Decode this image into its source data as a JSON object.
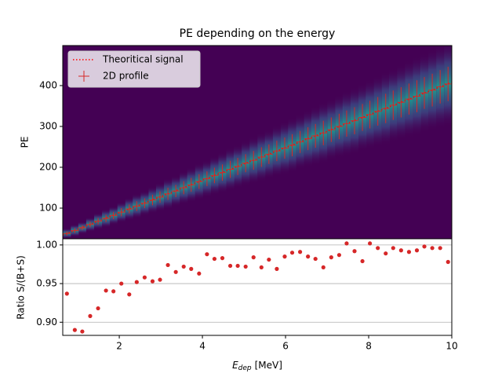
{
  "chart_data": [
    {
      "type": "hist2d-profile",
      "title": "PE depending on the energy",
      "ylabel": "PE",
      "xlim": [
        0.64,
        10
      ],
      "ylim": [
        25,
        498
      ],
      "yticks": [
        100,
        200,
        300,
        400
      ],
      "legend": "upper left",
      "profile": {
        "name": "2D profile",
        "color": "#d62728",
        "x": [
          0.74,
          0.93,
          1.11,
          1.3,
          1.49,
          1.68,
          1.86,
          2.05,
          2.24,
          2.42,
          2.61,
          2.8,
          2.98,
          3.17,
          3.36,
          3.55,
          3.73,
          3.92,
          4.11,
          4.29,
          4.48,
          4.67,
          4.85,
          5.04,
          5.23,
          5.42,
          5.6,
          5.79,
          5.98,
          6.16,
          6.35,
          6.54,
          6.72,
          6.91,
          7.1,
          7.29,
          7.47,
          7.66,
          7.85,
          8.03,
          8.22,
          8.41,
          8.59,
          8.78,
          8.97,
          9.16,
          9.34,
          9.53,
          9.72,
          9.91
        ],
        "values": [
          38,
          45,
          52,
          60,
          68,
          75,
          82,
          90,
          98,
          105,
          112,
          120,
          127,
          135,
          142,
          150,
          157,
          165,
          172,
          180,
          187,
          195,
          202,
          210,
          217,
          225,
          232,
          240,
          247,
          254,
          262,
          270,
          277,
          284,
          292,
          300,
          307,
          314,
          322,
          329,
          337,
          344,
          352,
          359,
          367,
          374,
          382,
          389,
          397,
          404
        ],
        "errors": [
          5,
          6,
          6,
          7,
          8,
          9,
          9,
          10,
          11,
          12,
          12,
          13,
          14,
          15,
          15,
          16,
          17,
          18,
          18,
          19,
          20,
          21,
          21,
          22,
          23,
          24,
          24,
          25,
          26,
          27,
          27,
          28,
          29,
          30,
          30,
          31,
          32,
          33,
          33,
          34,
          35,
          36,
          36,
          37,
          38,
          39,
          39,
          40,
          41,
          42
        ]
      },
      "signal": {
        "name": "Theoritical signal",
        "color": "#ff0000",
        "x": [
          0.64,
          10
        ],
        "values": [
          34,
          408
        ]
      }
    },
    {
      "type": "scatter",
      "ylabel": "Ratio S/(B+S)",
      "xlabel_symbol": "E",
      "xlabel_subscript": "dep",
      "xlabel_unit": "[MeV]",
      "xlim": [
        0.64,
        10
      ],
      "ylim": [
        0.883,
        1.008
      ],
      "xticks": [
        2,
        4,
        6,
        8,
        10
      ],
      "yticks": [
        {
          "value": 0.9,
          "label": "0.90"
        },
        {
          "value": 0.95,
          "label": "0.95"
        },
        {
          "value": 1.0,
          "label": "1.00"
        }
      ],
      "grid": true,
      "color": "#d62728",
      "x": [
        0.74,
        0.93,
        1.11,
        1.3,
        1.49,
        1.68,
        1.86,
        2.05,
        2.24,
        2.42,
        2.61,
        2.8,
        2.98,
        3.17,
        3.36,
        3.55,
        3.73,
        3.92,
        4.11,
        4.29,
        4.48,
        4.67,
        4.85,
        5.04,
        5.23,
        5.42,
        5.6,
        5.79,
        5.98,
        6.16,
        6.35,
        6.54,
        6.72,
        6.91,
        7.1,
        7.29,
        7.47,
        7.66,
        7.85,
        8.03,
        8.22,
        8.41,
        8.59,
        8.78,
        8.97,
        9.16,
        9.34,
        9.53,
        9.72,
        9.91
      ],
      "values": [
        0.937,
        0.89,
        0.888,
        0.908,
        0.918,
        0.941,
        0.94,
        0.95,
        0.936,
        0.952,
        0.958,
        0.953,
        0.955,
        0.974,
        0.965,
        0.972,
        0.969,
        0.963,
        0.988,
        0.982,
        0.983,
        0.973,
        0.973,
        0.972,
        0.984,
        0.971,
        0.981,
        0.969,
        0.985,
        0.99,
        0.991,
        0.985,
        0.982,
        0.971,
        0.984,
        0.987,
        1.002,
        0.992,
        0.979,
        1.002,
        0.996,
        0.989,
        0.996,
        0.993,
        0.991,
        0.993,
        0.998,
        0.996,
        0.996,
        0.978
      ]
    }
  ]
}
